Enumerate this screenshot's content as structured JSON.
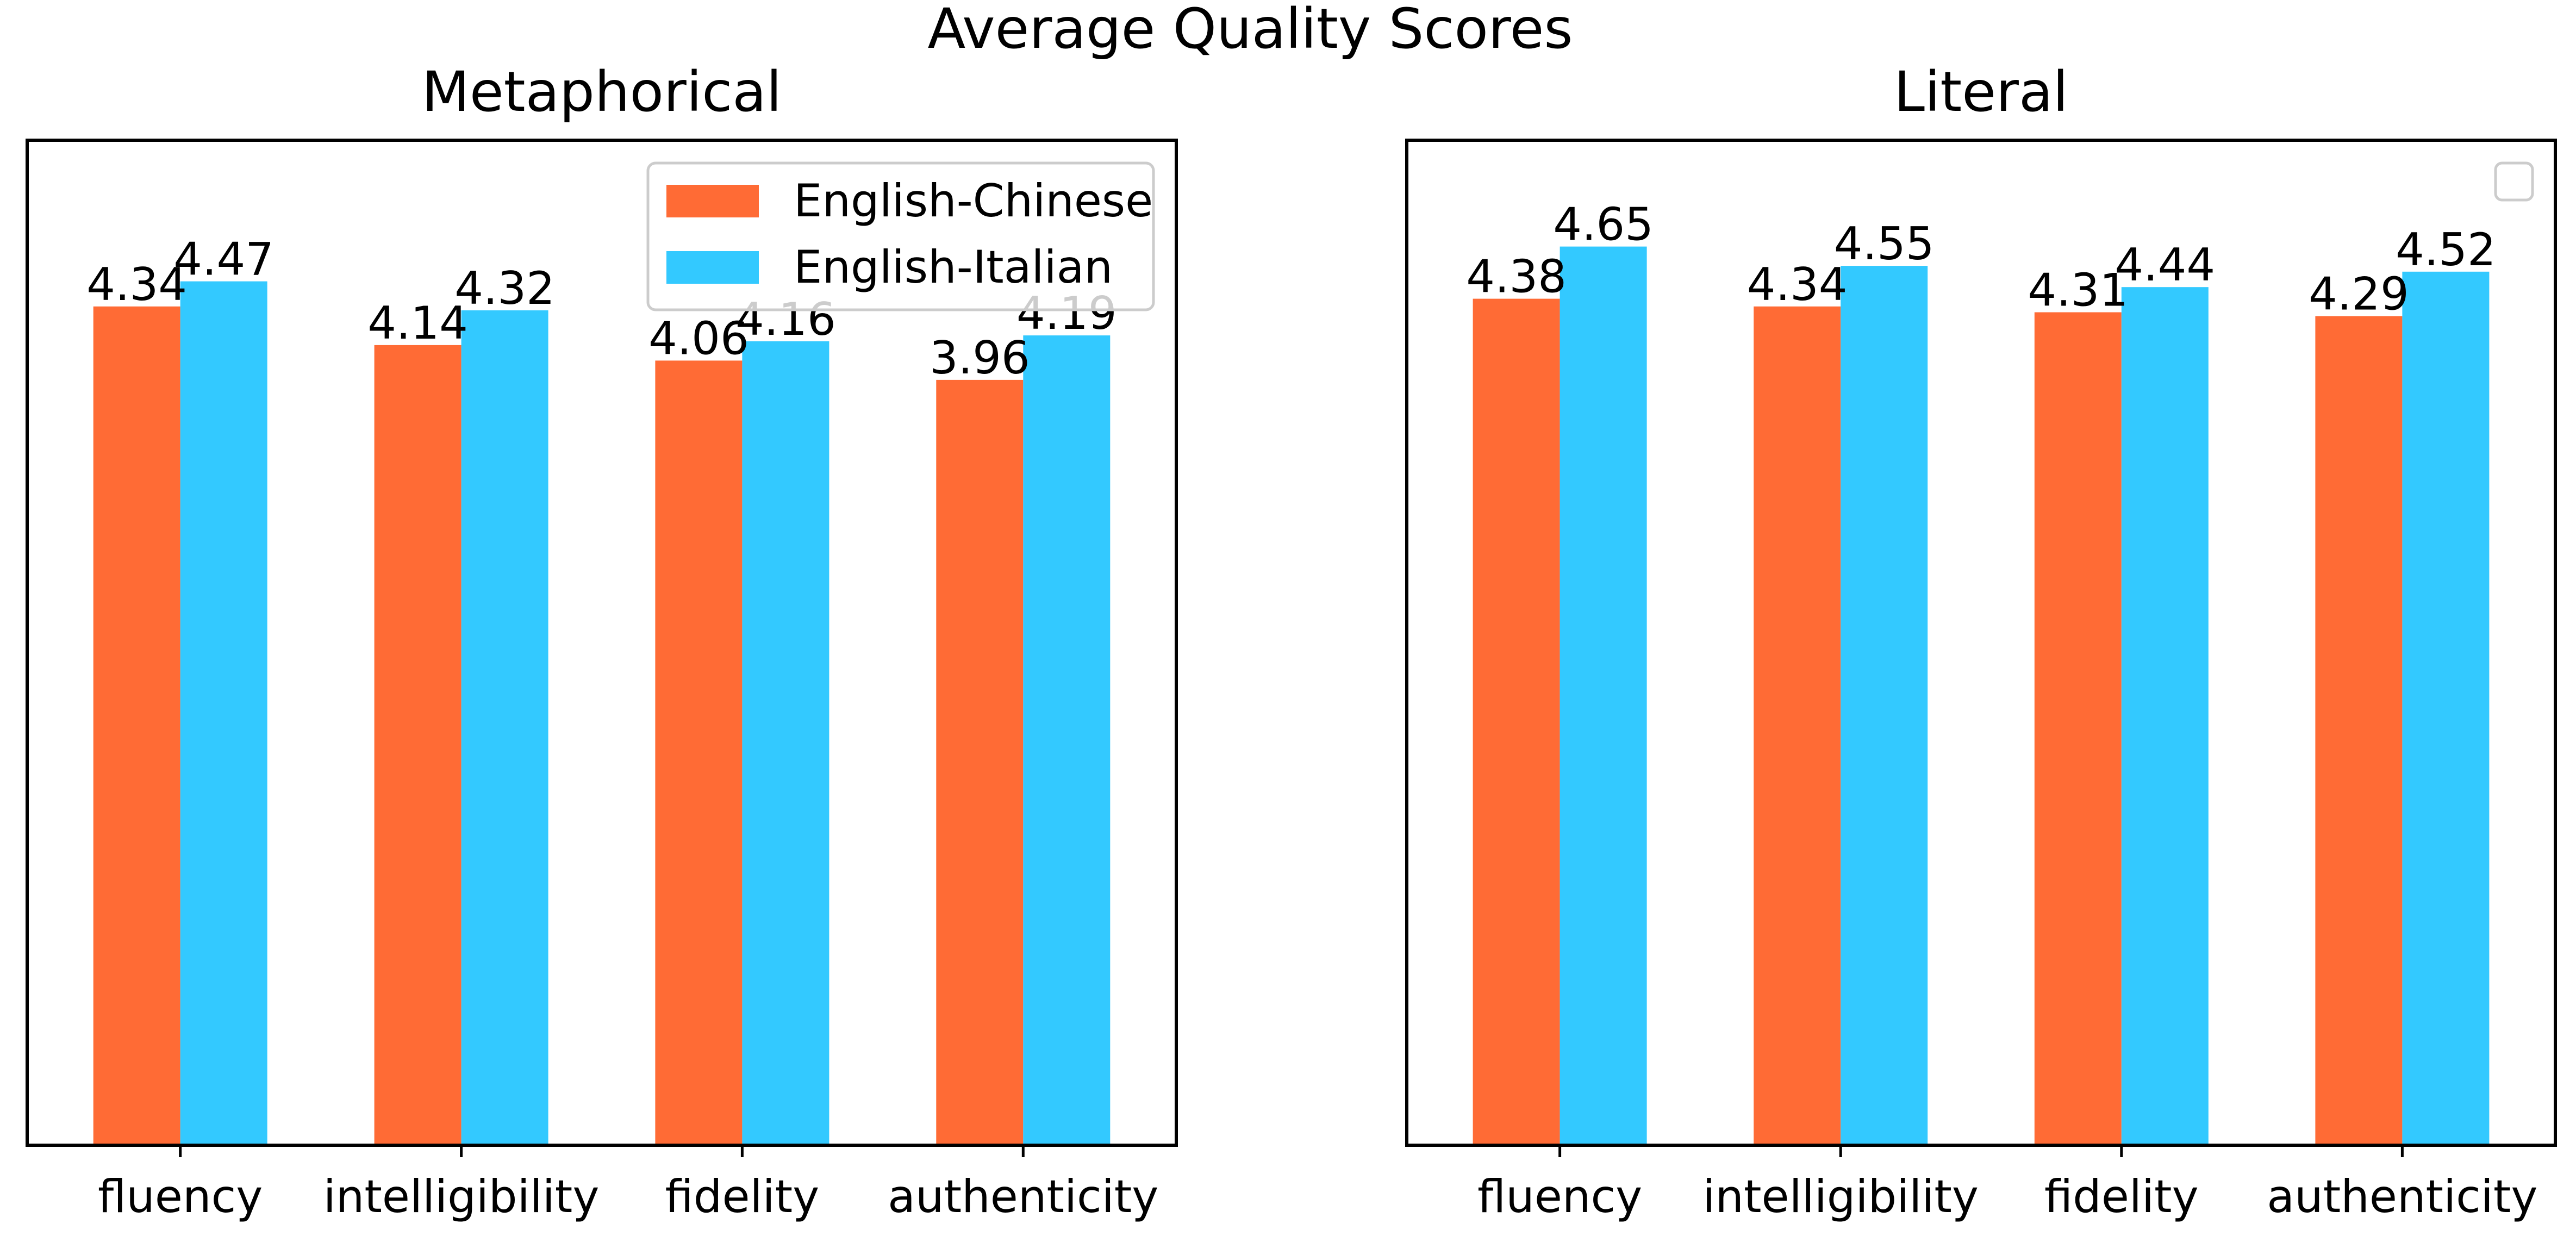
{
  "figure": {
    "suptitle": "Average Quality Scores"
  },
  "chart_data": [
    {
      "type": "bar",
      "title": "Metaphorical",
      "categories": [
        "fluency",
        "intelligibility",
        "fidelity",
        "authenticity"
      ],
      "series": [
        {
          "name": "English-Chinese",
          "values": [
            4.34,
            4.14,
            4.06,
            3.96
          ],
          "color": "#ff6b35"
        },
        {
          "name": "English-Italian",
          "values": [
            4.47,
            4.32,
            4.16,
            4.19
          ],
          "color": "#33c9ff"
        }
      ],
      "xlabel": "",
      "ylabel": "",
      "ylim": [
        0,
        5.2
      ],
      "yticks_visible": false,
      "grid": false,
      "legend": {
        "visible": true,
        "placement": "upper right"
      },
      "data_labels": [
        "4.34",
        "4.14",
        "4.06",
        "3.96",
        "4.47",
        "4.32",
        "4.16",
        "4.19"
      ]
    },
    {
      "type": "bar",
      "title": "Literal",
      "categories": [
        "fluency",
        "intelligibility",
        "fidelity",
        "authenticity"
      ],
      "series": [
        {
          "values": [
            4.38,
            4.34,
            4.31,
            4.29
          ],
          "color": "#ff6b35"
        },
        {
          "values": [
            4.65,
            4.55,
            4.44,
            4.52
          ],
          "color": "#33c9ff"
        }
      ],
      "xlabel": "",
      "ylabel": "",
      "ylim": [
        0,
        5.2
      ],
      "yticks_visible": false,
      "grid": false,
      "legend": {
        "visible": true,
        "placement": "upper right",
        "entries": []
      },
      "data_labels": [
        "4.38",
        "4.34",
        "4.31",
        "4.29",
        "4.65",
        "4.55",
        "4.44",
        "4.52"
      ]
    }
  ]
}
